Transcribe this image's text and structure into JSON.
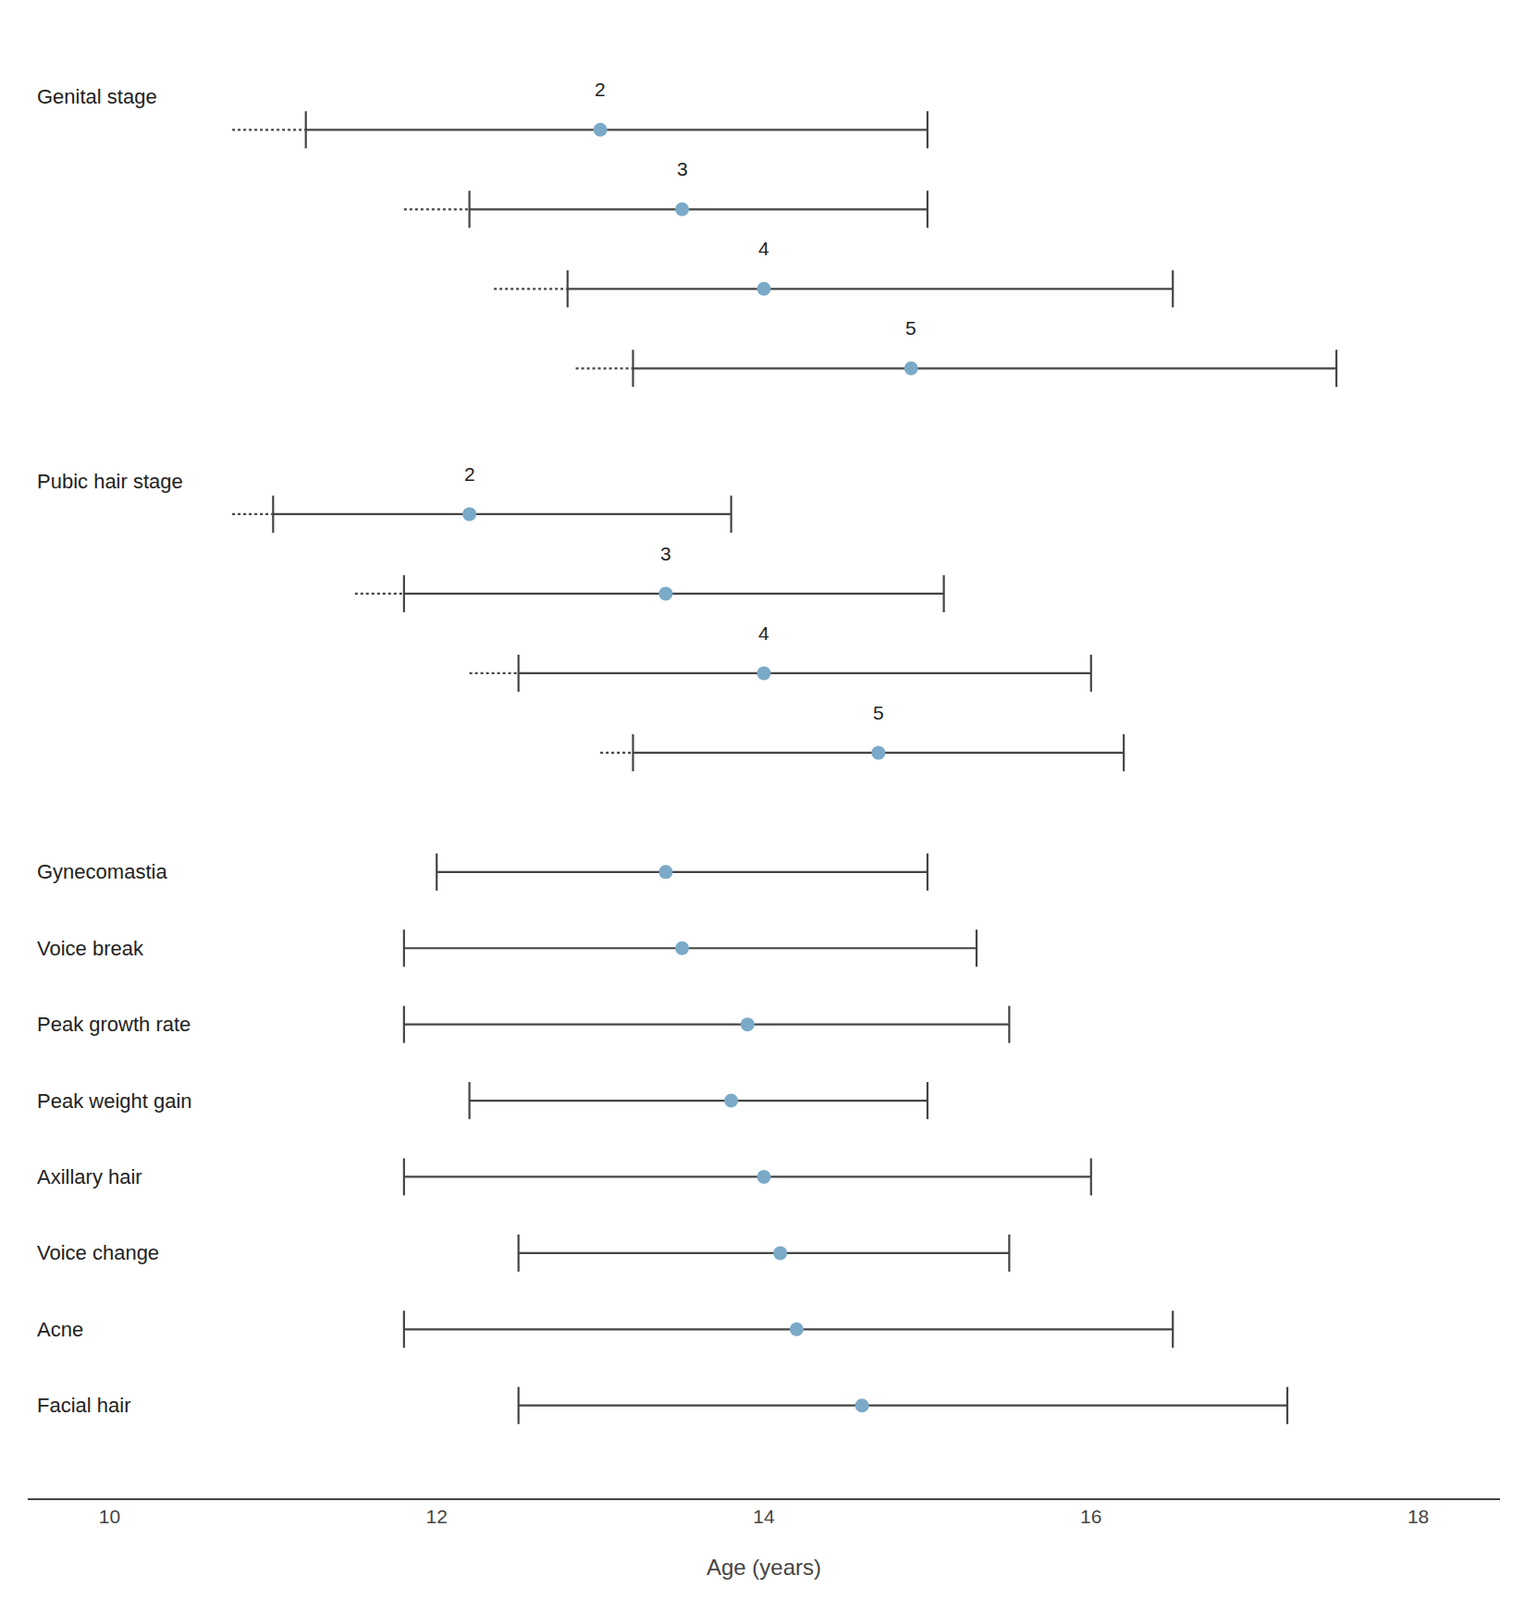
{
  "chart_data": {
    "type": "range",
    "xlabel": "Age (years)",
    "xlim": [
      9.5,
      18.5
    ],
    "xticks": [
      10,
      12,
      14,
      16,
      18
    ],
    "grid": false,
    "color": "#7aaac8",
    "groups": [
      {
        "label": "Genital stage",
        "rows": [
          {
            "label": "2",
            "mean": 13.0,
            "low": 11.2,
            "high": 15.0,
            "dot_start": 10.75
          },
          {
            "label": "3",
            "mean": 13.5,
            "low": 12.2,
            "high": 15.0,
            "dot_start": 11.8
          },
          {
            "label": "4",
            "mean": 14.0,
            "low": 12.8,
            "high": 16.5,
            "dot_start": 12.35
          },
          {
            "label": "5",
            "mean": 14.9,
            "low": 13.2,
            "high": 17.5,
            "dot_start": 12.85
          }
        ]
      },
      {
        "label": "Pubic hair stage",
        "rows": [
          {
            "label": "2",
            "mean": 12.2,
            "low": 11.0,
            "high": 13.8,
            "dot_start": 10.75
          },
          {
            "label": "3",
            "mean": 13.4,
            "low": 11.8,
            "high": 15.1,
            "dot_start": 11.5
          },
          {
            "label": "4",
            "mean": 14.0,
            "low": 12.5,
            "high": 16.0,
            "dot_start": 12.2
          },
          {
            "label": "5",
            "mean": 14.7,
            "low": 13.2,
            "high": 16.2,
            "dot_start": 13.0
          }
        ]
      }
    ],
    "rows": [
      {
        "label": "Gynecomastia",
        "mean": 13.4,
        "low": 12.0,
        "high": 15.0
      },
      {
        "label": "Voice break",
        "mean": 13.5,
        "low": 11.8,
        "high": 15.3
      },
      {
        "label": "Peak growth rate",
        "mean": 13.9,
        "low": 11.8,
        "high": 15.5
      },
      {
        "label": "Peak weight gain",
        "mean": 13.8,
        "low": 12.2,
        "high": 15.0
      },
      {
        "label": "Axillary hair",
        "mean": 14.0,
        "low": 11.8,
        "high": 16.0
      },
      {
        "label": "Voice change",
        "mean": 14.1,
        "low": 12.5,
        "high": 15.5
      },
      {
        "label": "Acne",
        "mean": 14.2,
        "low": 11.8,
        "high": 16.5
      },
      {
        "label": "Facial hair",
        "mean": 14.6,
        "low": 12.5,
        "high": 17.2
      }
    ]
  }
}
